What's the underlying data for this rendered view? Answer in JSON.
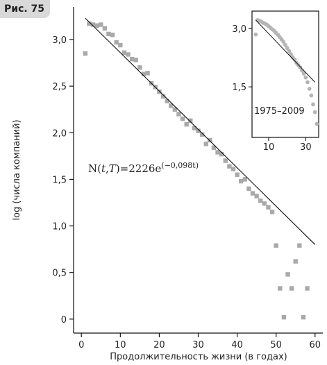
{
  "figure_label": "Рис. 75",
  "chart_data": [
    {
      "type": "scatter",
      "title": "",
      "xlabel": "Продолжительность жизни (в годах)",
      "ylabel": "log (числа компаний)",
      "xlim": [
        -2,
        62
      ],
      "ylim": [
        -0.15,
        3.35
      ],
      "xticks": [
        0,
        10,
        20,
        30,
        40,
        50,
        60
      ],
      "yticks": [
        0,
        0.5,
        1.0,
        1.5,
        2.0,
        2.5,
        3.0
      ],
      "ytick_labels": [
        "0",
        "0,5",
        "1,0",
        "1,5",
        "2,0",
        "2,5",
        "3,0"
      ],
      "marker_color": "#a9a9a9",
      "points": [
        [
          1,
          2.85
        ],
        [
          2,
          3.17
        ],
        [
          3,
          3.16
        ],
        [
          4,
          3.15
        ],
        [
          5,
          3.16
        ],
        [
          6,
          3.12
        ],
        [
          7,
          3.06
        ],
        [
          8,
          3.05
        ],
        [
          9,
          2.97
        ],
        [
          10,
          2.94
        ],
        [
          11,
          2.86
        ],
        [
          12,
          2.84
        ],
        [
          13,
          2.79
        ],
        [
          14,
          2.78
        ],
        [
          15,
          2.7
        ],
        [
          16,
          2.63
        ],
        [
          17,
          2.64
        ],
        [
          18,
          2.53
        ],
        [
          19,
          2.49
        ],
        [
          20,
          2.44
        ],
        [
          21,
          2.39
        ],
        [
          22,
          2.34
        ],
        [
          23,
          2.29
        ],
        [
          24,
          2.25
        ],
        [
          25,
          2.2
        ],
        [
          26,
          2.15
        ],
        [
          27,
          2.09
        ],
        [
          28,
          2.13
        ],
        [
          29,
          2.05
        ],
        [
          30,
          2.02
        ],
        [
          31,
          1.98
        ],
        [
          32,
          1.88
        ],
        [
          33,
          1.92
        ],
        [
          34,
          1.84
        ],
        [
          35,
          1.79
        ],
        [
          36,
          1.77
        ],
        [
          37,
          1.7
        ],
        [
          38,
          1.64
        ],
        [
          39,
          1.61
        ],
        [
          40,
          1.55
        ],
        [
          41,
          1.48
        ],
        [
          42,
          1.5
        ],
        [
          43,
          1.4
        ],
        [
          44,
          1.35
        ],
        [
          45,
          1.32
        ],
        [
          46,
          1.27
        ],
        [
          47,
          1.24
        ],
        [
          48,
          1.2
        ],
        [
          49,
          1.15
        ],
        [
          50,
          0.79
        ],
        [
          51,
          0.33
        ],
        [
          52,
          0.02
        ],
        [
          53,
          0.48
        ],
        [
          54,
          0.33
        ],
        [
          55,
          0.62
        ],
        [
          56,
          0.79
        ],
        [
          57,
          0.02
        ],
        [
          58,
          0.33
        ]
      ],
      "fit_line": {
        "x": [
          1,
          60
        ],
        "y": [
          3.23,
          0.8
        ],
        "color": "#111111"
      },
      "annotation": "N(t,T)=2226e(−0,098t)",
      "annotation_parts": {
        "N": "N(",
        "t": "t",
        "comma": ",",
        "T": "T",
        "mid": ")=2226e",
        "exponent": "(−0,098t)"
      }
    },
    {
      "type": "scatter",
      "title": "",
      "xlim": [
        1,
        37
      ],
      "ylim": [
        0.2,
        3.45
      ],
      "xticks": [
        10,
        30
      ],
      "yticks": [
        1.5,
        3.0
      ],
      "ytick_labels": [
        "1,5",
        "3,0"
      ],
      "marker_color": "#b5b5b5",
      "annotation": "1975–2009",
      "points": [
        [
          3,
          2.85
        ],
        [
          4,
          3.22
        ],
        [
          5,
          3.2
        ],
        [
          6,
          3.18
        ],
        [
          7,
          3.15
        ],
        [
          8,
          3.13
        ],
        [
          9,
          3.1
        ],
        [
          10,
          3.06
        ],
        [
          11,
          3.02
        ],
        [
          12,
          2.98
        ],
        [
          13,
          2.94
        ],
        [
          14,
          2.89
        ],
        [
          15,
          2.84
        ],
        [
          16,
          2.78
        ],
        [
          17,
          2.72
        ],
        [
          18,
          2.66
        ],
        [
          19,
          2.58
        ],
        [
          20,
          2.5
        ],
        [
          21,
          2.42
        ],
        [
          22,
          2.34
        ],
        [
          23,
          2.26
        ],
        [
          24,
          2.2
        ],
        [
          25,
          2.12
        ],
        [
          26,
          2.06
        ],
        [
          27,
          2.0
        ],
        [
          28,
          1.92
        ],
        [
          29,
          1.84
        ],
        [
          30,
          1.74
        ],
        [
          31,
          1.62
        ],
        [
          32,
          1.45
        ],
        [
          33,
          1.28
        ],
        [
          34,
          1.05
        ],
        [
          35,
          0.85
        ],
        [
          36,
          0.55
        ]
      ],
      "fit_line": {
        "x": [
          3,
          35
        ],
        "y": [
          3.22,
          1.62
        ],
        "color": "#111111"
      }
    }
  ]
}
